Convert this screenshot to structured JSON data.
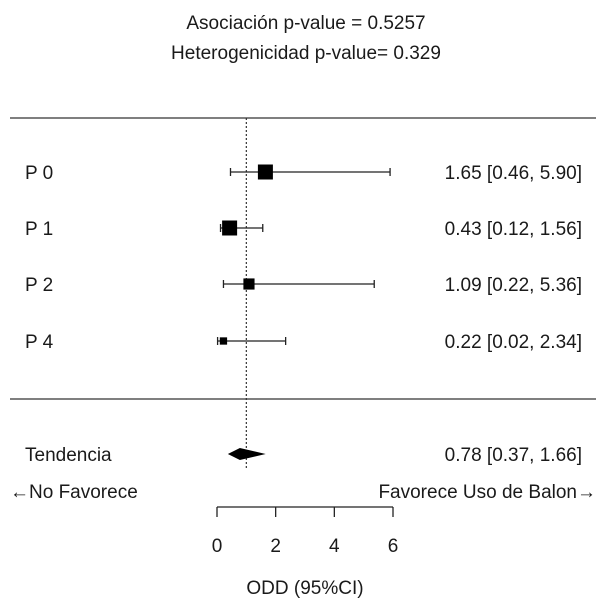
{
  "chart_data": {
    "type": "forest",
    "title": [
      "Asociación p-value = 0.5257",
      "Heterogenicidad p-value= 0.329"
    ],
    "studies": [
      {
        "label": "P 0",
        "estimate": 1.65,
        "ci": [
          0.46,
          5.9
        ],
        "ci_text": "1.65 [0.46, 5.90]",
        "weight": 1.0
      },
      {
        "label": "P 1",
        "estimate": 0.43,
        "ci": [
          0.12,
          1.56
        ],
        "ci_text": "0.43 [0.12, 1.56]",
        "weight": 1.0
      },
      {
        "label": "P 2",
        "estimate": 1.09,
        "ci": [
          0.22,
          5.36
        ],
        "ci_text": "1.09 [0.22, 5.36]",
        "weight": 0.65
      },
      {
        "label": "P 4",
        "estimate": 0.22,
        "ci": [
          0.02,
          2.34
        ],
        "ci_text": "0.22 [0.02, 2.34]",
        "weight": 0.3
      }
    ],
    "summary": {
      "label": "Tendencia",
      "estimate": 0.78,
      "ci": [
        0.37,
        1.66
      ],
      "ci_text": "0.78 [0.37, 1.66]"
    },
    "reference_line": 1,
    "favors_left": "←No Favorece",
    "favors_right": "Favorece Uso de Balon→",
    "xlabel": "ODD (95%CI)",
    "xticks": [
      0,
      2,
      4,
      6
    ],
    "xlim": [
      0,
      6
    ],
    "grid": false,
    "colors": {
      "ink": "#1a1a1a",
      "rule": "#555555",
      "marker": "#000000"
    }
  }
}
